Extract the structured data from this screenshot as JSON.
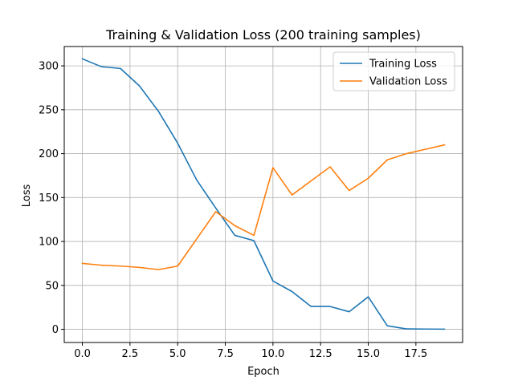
{
  "chart_data": {
    "type": "line",
    "title": "Training & Validation Loss (200 training samples)",
    "xlabel": "Epoch",
    "ylabel": "Loss",
    "xlim": [
      -0.95,
      19.95
    ],
    "ylim": [
      -15,
      322
    ],
    "xticks": [
      0,
      2.5,
      5,
      7.5,
      10,
      12.5,
      15,
      17.5
    ],
    "xtick_labels": [
      "0.0",
      "2.5",
      "5.0",
      "7.5",
      "10.0",
      "12.5",
      "15.0",
      "17.5"
    ],
    "yticks": [
      0,
      50,
      100,
      150,
      200,
      250,
      300
    ],
    "ytick_labels": [
      "0",
      "50",
      "100",
      "150",
      "200",
      "250",
      "300"
    ],
    "grid": true,
    "legend_position": "top-right",
    "x": [
      0,
      1,
      2,
      3,
      4,
      5,
      6,
      7,
      8,
      9,
      10,
      11,
      12,
      13,
      14,
      15,
      16,
      17,
      18,
      19
    ],
    "series": [
      {
        "name": "Training Loss",
        "color": "#1f77b4",
        "values": [
          308,
          299,
          297,
          277,
          248,
          212,
          170,
          138,
          107,
          101,
          55,
          43,
          26,
          26,
          20,
          37,
          4,
          0.5,
          0.3,
          0.2
        ]
      },
      {
        "name": "Validation Loss",
        "color": "#ff7f0e",
        "values": [
          75,
          73,
          72,
          70.5,
          68,
          72,
          103,
          134,
          118,
          107,
          184,
          153,
          169,
          185,
          158,
          172,
          193,
          200,
          205,
          210
        ]
      }
    ]
  }
}
